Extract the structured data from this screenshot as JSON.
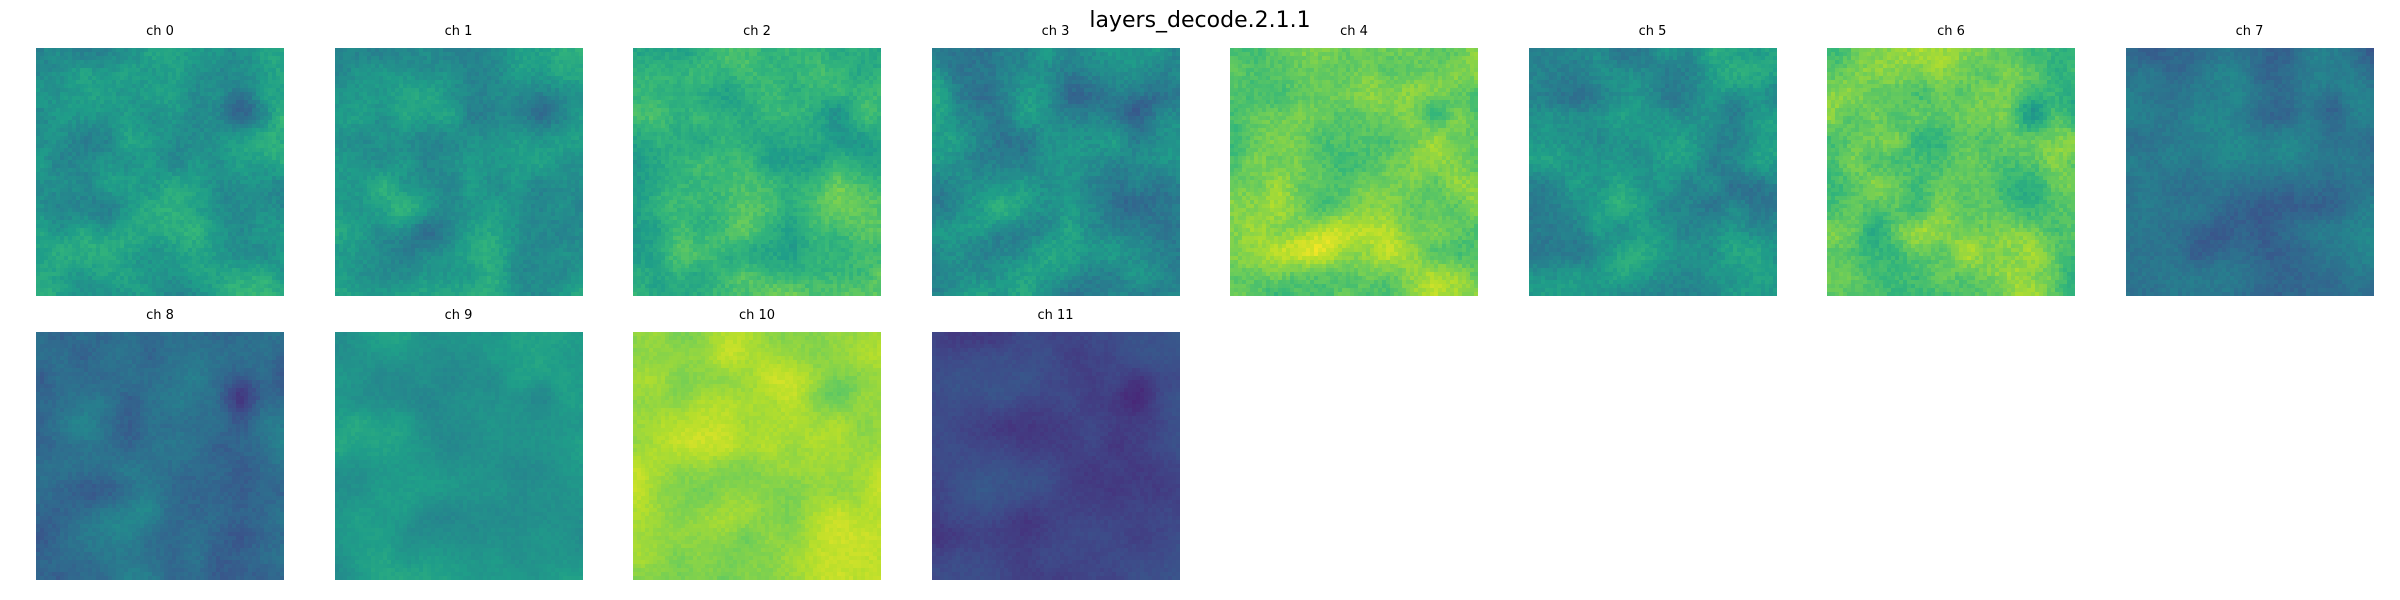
{
  "figure": {
    "title": "layers_decode.2.1.1"
  },
  "chart_data": {
    "type": "heatmap",
    "title": "layers_decode.2.1.1",
    "colormap": "viridis",
    "panels": [
      {
        "label": "ch 0",
        "mean": 0.55,
        "contrast": 0.55,
        "seed": 11
      },
      {
        "label": "ch 1",
        "mean": 0.53,
        "contrast": 0.5,
        "seed": 23
      },
      {
        "label": "ch 2",
        "mean": 0.66,
        "contrast": 0.55,
        "seed": 37
      },
      {
        "label": "ch 3",
        "mean": 0.47,
        "contrast": 0.6,
        "seed": 41
      },
      {
        "label": "ch 4",
        "mean": 0.8,
        "contrast": 0.55,
        "seed": 53
      },
      {
        "label": "ch 5",
        "mean": 0.52,
        "contrast": 0.55,
        "seed": 67
      },
      {
        "label": "ch 6",
        "mean": 0.74,
        "contrast": 0.6,
        "seed": 71
      },
      {
        "label": "ch 7",
        "mean": 0.38,
        "contrast": 0.45,
        "seed": 83
      },
      {
        "label": "ch 8",
        "mean": 0.38,
        "contrast": 0.4,
        "seed": 97
      },
      {
        "label": "ch 9",
        "mean": 0.53,
        "contrast": 0.3,
        "seed": 101
      },
      {
        "label": "ch 10",
        "mean": 0.86,
        "contrast": 0.3,
        "seed": 113
      },
      {
        "label": "ch 11",
        "mean": 0.22,
        "contrast": 0.25,
        "seed": 127
      }
    ],
    "grid": false,
    "axes": "off"
  }
}
